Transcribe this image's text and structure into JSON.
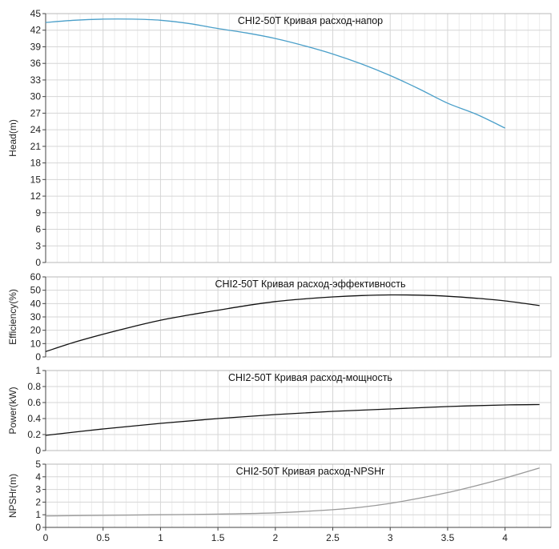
{
  "chart_data": [
    {
      "id": "head",
      "type": "line",
      "title": "CHI2-50T Кривая расход-напор",
      "ylabel": "Head(m)",
      "xlabel": "",
      "ylim": [
        0,
        45
      ],
      "yticks": [
        0,
        3,
        6,
        9,
        12,
        15,
        18,
        21,
        24,
        27,
        30,
        33,
        36,
        39,
        42,
        45
      ],
      "xlim": [
        0,
        4.4
      ],
      "grid": true,
      "line_color": "#4a9fc9",
      "x": [
        0,
        0.25,
        0.5,
        0.75,
        1.0,
        1.25,
        1.5,
        1.75,
        2.0,
        2.25,
        2.5,
        2.75,
        3.0,
        3.25,
        3.5,
        3.75,
        4.0
      ],
      "values": [
        43.4,
        43.8,
        44.0,
        44.0,
        43.8,
        43.2,
        42.3,
        41.5,
        40.5,
        39.2,
        37.7,
        35.9,
        33.8,
        31.4,
        28.8,
        26.8,
        24.3
      ]
    },
    {
      "id": "efficiency",
      "type": "line",
      "title": "CHI2-50T Кривая расход-эффективность",
      "ylabel": "Efficiency(%)",
      "xlabel": "",
      "ylim": [
        0,
        60
      ],
      "yticks": [
        0,
        10,
        20,
        30,
        40,
        50,
        60
      ],
      "xlim": [
        0,
        4.4
      ],
      "grid": true,
      "line_color": "#111111",
      "x": [
        0,
        0.25,
        0.5,
        0.75,
        1.0,
        1.25,
        1.5,
        1.75,
        2.0,
        2.25,
        2.5,
        2.75,
        3.0,
        3.25,
        3.5,
        3.75,
        4.0,
        4.3
      ],
      "values": [
        4,
        11,
        17,
        22.5,
        27.5,
        31.5,
        35,
        38.5,
        41.5,
        43.5,
        45,
        46,
        46.5,
        46.3,
        45.5,
        44,
        42,
        38.5
      ]
    },
    {
      "id": "power",
      "type": "line",
      "title": "CHI2-50T Кривая расход-мощность",
      "ylabel": "Power(kW)",
      "xlabel": "",
      "ylim": [
        0,
        1
      ],
      "yticks": [
        0,
        0.2,
        0.4,
        0.6,
        0.8,
        1
      ],
      "xlim": [
        0,
        4.4
      ],
      "grid": true,
      "line_color": "#111111",
      "x": [
        0,
        0.5,
        1.0,
        1.5,
        2.0,
        2.5,
        3.0,
        3.5,
        4.0,
        4.3
      ],
      "values": [
        0.19,
        0.27,
        0.34,
        0.4,
        0.45,
        0.49,
        0.52,
        0.55,
        0.57,
        0.575
      ]
    },
    {
      "id": "npshr",
      "type": "line",
      "title": "CHI2-50T Кривая расход-NPSHr",
      "ylabel": "NPSHr(m)",
      "xlabel": "",
      "ylim": [
        0,
        5
      ],
      "yticks": [
        0,
        1,
        2,
        3,
        4,
        5
      ],
      "xlim": [
        0,
        4.4
      ],
      "xticks": [
        0,
        0.5,
        1,
        1.5,
        2,
        2.5,
        3,
        3.5,
        4
      ],
      "grid": true,
      "line_color": "#999999",
      "x": [
        0,
        0.5,
        1.0,
        1.5,
        2.0,
        2.5,
        2.75,
        3.0,
        3.25,
        3.5,
        3.75,
        4.0,
        4.3
      ],
      "values": [
        0.9,
        0.95,
        1.0,
        1.05,
        1.15,
        1.4,
        1.6,
        1.9,
        2.3,
        2.75,
        3.3,
        3.9,
        4.7
      ]
    }
  ]
}
